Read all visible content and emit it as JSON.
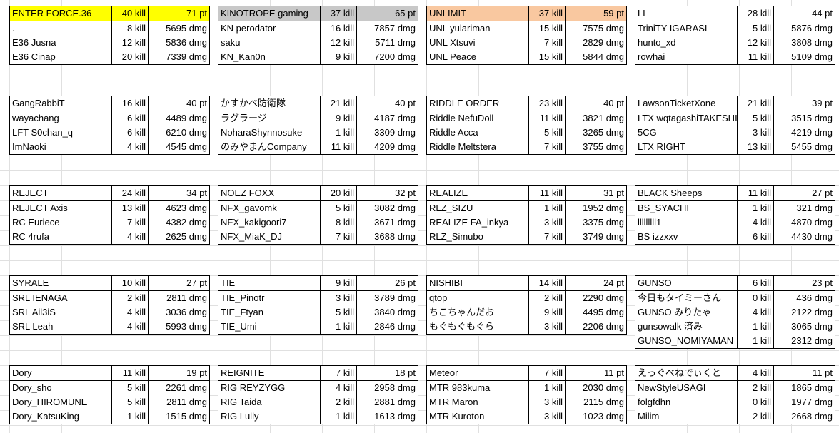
{
  "teams": [
    {
      "name": "ENTER FORCE.36",
      "kills": "40 kill",
      "points": "71 pt",
      "highlight": "#ffff00",
      "players": [
        {
          "name": ".",
          "kills": "8 kill",
          "dmg": "5695 dmg"
        },
        {
          "name": "E36 Jusna",
          "kills": "12 kill",
          "dmg": "5836 dmg"
        },
        {
          "name": "E36 Cinap",
          "kills": "20 kill",
          "dmg": "7339 dmg"
        }
      ]
    },
    {
      "name": "KINOTROPE gaming",
      "kills": "37 kill",
      "points": "65 pt",
      "highlight": "#c8c8c8",
      "players": [
        {
          "name": "KN perodator",
          "kills": "16 kill",
          "dmg": "7857 dmg"
        },
        {
          "name": "saku",
          "kills": "12 kill",
          "dmg": "5711 dmg"
        },
        {
          "name": "KN_Kan0n",
          "kills": "9 kill",
          "dmg": "7200 dmg"
        }
      ]
    },
    {
      "name": "UNLIMIT",
      "kills": "37 kill",
      "points": "59 pt",
      "highlight": "#f9c8a0",
      "players": [
        {
          "name": "UNL yulariman",
          "kills": "15 kill",
          "dmg": "7575 dmg"
        },
        {
          "name": "UNL Xtsuvi",
          "kills": "7 kill",
          "dmg": "2829 dmg"
        },
        {
          "name": "UNL Peace",
          "kills": "15 kill",
          "dmg": "5844 dmg"
        }
      ]
    },
    {
      "name": "LL",
      "kills": "28 kill",
      "points": "44 pt",
      "highlight": "",
      "players": [
        {
          "name": "TriniTY IGARASI",
          "kills": "5 kill",
          "dmg": "5876 dmg"
        },
        {
          "name": "hunto_xd",
          "kills": "12 kill",
          "dmg": "3808 dmg"
        },
        {
          "name": "rowhai",
          "kills": "11 kill",
          "dmg": "5109 dmg"
        }
      ]
    },
    {
      "name": "GangRabbiT",
      "kills": "16 kill",
      "points": "40 pt",
      "highlight": "",
      "players": [
        {
          "name": "wayachang",
          "kills": "6 kill",
          "dmg": "4489 dmg"
        },
        {
          "name": "LFT S0chan_q",
          "kills": "6 kill",
          "dmg": "6210 dmg"
        },
        {
          "name": "ImNaoki",
          "kills": "4 kill",
          "dmg": "4545 dmg"
        }
      ]
    },
    {
      "name": "かすかべ防衛隊",
      "kills": "21 kill",
      "points": "40 pt",
      "highlight": "",
      "players": [
        {
          "name": "ラグラージ",
          "kills": "9 kill",
          "dmg": "4187 dmg"
        },
        {
          "name": "NoharaShynnosuke",
          "kills": "1 kill",
          "dmg": "3309 dmg"
        },
        {
          "name": "のみやまんCompany",
          "kills": "11 kill",
          "dmg": "4209 dmg"
        }
      ]
    },
    {
      "name": "RIDDLE ORDER",
      "kills": "23 kill",
      "points": "40 pt",
      "highlight": "",
      "players": [
        {
          "name": "Riddle NefuDoll",
          "kills": "11 kill",
          "dmg": "3821 dmg"
        },
        {
          "name": "Riddle Acca",
          "kills": "5 kill",
          "dmg": "3265 dmg"
        },
        {
          "name": "Riddle Meltstera",
          "kills": "7 kill",
          "dmg": "3755 dmg"
        }
      ]
    },
    {
      "name": "LawsonTicketXone",
      "kills": "21 kill",
      "points": "39 pt",
      "highlight": "",
      "players": [
        {
          "name": "LTX wqtagashiTAKESHI",
          "kills": "5 kill",
          "dmg": "3515 dmg"
        },
        {
          "name": "5CG",
          "kills": "3 kill",
          "dmg": "4219 dmg"
        },
        {
          "name": "LTX RIGHT",
          "kills": "13 kill",
          "dmg": "5455 dmg"
        }
      ]
    },
    {
      "name": "REJECT",
      "kills": "24 kill",
      "points": "34 pt",
      "highlight": "",
      "players": [
        {
          "name": "REJECT Axis",
          "kills": "13 kill",
          "dmg": "4623 dmg"
        },
        {
          "name": "RC Euriece",
          "kills": "7 kill",
          "dmg": "4382 dmg"
        },
        {
          "name": "RC 4rufa",
          "kills": "4 kill",
          "dmg": "2625 dmg"
        }
      ]
    },
    {
      "name": "NOEZ FOXX",
      "kills": "20 kill",
      "points": "32 pt",
      "highlight": "",
      "players": [
        {
          "name": "NFX_gavomk",
          "kills": "5 kill",
          "dmg": "3082 dmg"
        },
        {
          "name": "NFX_kakigoori7",
          "kills": "8 kill",
          "dmg": "3671 dmg"
        },
        {
          "name": "NFX_MiaK_DJ",
          "kills": "7 kill",
          "dmg": "3688 dmg"
        }
      ]
    },
    {
      "name": "REALIZE",
      "kills": "11 kill",
      "points": "31 pt",
      "highlight": "",
      "players": [
        {
          "name": "RLZ_SIZU",
          "kills": "1 kill",
          "dmg": "1952 dmg"
        },
        {
          "name": "REALIZE FA_inkya",
          "kills": "3 kill",
          "dmg": "3375 dmg"
        },
        {
          "name": "RLZ_Simubo",
          "kills": "7 kill",
          "dmg": "3749 dmg"
        }
      ]
    },
    {
      "name": "BLACK Sheeps",
      "kills": "11 kill",
      "points": "27 pt",
      "highlight": "",
      "players": [
        {
          "name": "BS_SYACHI",
          "kills": "1 kill",
          "dmg": "321 dmg"
        },
        {
          "name": "lllllllll1",
          "kills": "4 kill",
          "dmg": "4870 dmg"
        },
        {
          "name": "BS izzxxv",
          "kills": "6 kill",
          "dmg": "4430 dmg"
        }
      ]
    },
    {
      "name": "SYRALE",
      "kills": "10 kill",
      "points": "27 pt",
      "highlight": "",
      "players": [
        {
          "name": "SRL IENAGA",
          "kills": "2 kill",
          "dmg": "2811 dmg"
        },
        {
          "name": "SRL Ail3iS",
          "kills": "4 kill",
          "dmg": "3036 dmg"
        },
        {
          "name": "SRL Leah",
          "kills": "4 kill",
          "dmg": "5993 dmg"
        }
      ]
    },
    {
      "name": "TIE",
      "kills": "9 kill",
      "points": "26 pt",
      "highlight": "",
      "players": [
        {
          "name": "TIE_Pinotr",
          "kills": "3 kill",
          "dmg": "3789 dmg"
        },
        {
          "name": "TIE_Ftyan",
          "kills": "5 kill",
          "dmg": "3840 dmg"
        },
        {
          "name": "TIE_Umi",
          "kills": "1 kill",
          "dmg": "2846 dmg"
        }
      ]
    },
    {
      "name": "NISHIBI",
      "kills": "14 kill",
      "points": "24 pt",
      "highlight": "",
      "players": [
        {
          "name": "qtop",
          "kills": "2 kill",
          "dmg": "2290 dmg"
        },
        {
          "name": "ちこちゃんだお",
          "kills": "9 kill",
          "dmg": "4495 dmg"
        },
        {
          "name": "もぐもぐもぐら",
          "kills": "3 kill",
          "dmg": "2206 dmg"
        }
      ]
    },
    {
      "name": "GUNSO",
      "kills": "6 kill",
      "points": "23 pt",
      "highlight": "",
      "players": [
        {
          "name": "今日もタイミーさん",
          "kills": "0 kill",
          "dmg": "436 dmg"
        },
        {
          "name": "GUNSO みりたゃ",
          "kills": "4 kill",
          "dmg": "2122 dmg"
        },
        {
          "name": "gunsowalk 済み",
          "kills": "1 kill",
          "dmg": "3065 dmg"
        },
        {
          "name": "GUNSO_NOMIYAMAN",
          "kills": "1 kill",
          "dmg": "2312 dmg"
        }
      ]
    },
    {
      "name": "Dory",
      "kills": "11 kill",
      "points": "19 pt",
      "highlight": "",
      "players": [
        {
          "name": "Dory_sho",
          "kills": "5 kill",
          "dmg": "2261 dmg"
        },
        {
          "name": "Dory_HIROMUNE",
          "kills": "5 kill",
          "dmg": "2811 dmg"
        },
        {
          "name": "Dory_KatsuKing",
          "kills": "1 kill",
          "dmg": "1515 dmg"
        }
      ]
    },
    {
      "name": "REIGNITE",
      "kills": "7 kill",
      "points": "18 pt",
      "highlight": "",
      "players": [
        {
          "name": "RIG REYZYGG",
          "kills": "4 kill",
          "dmg": "2958 dmg"
        },
        {
          "name": "RIG Taida",
          "kills": "2 kill",
          "dmg": "2881 dmg"
        },
        {
          "name": "RIG Lully",
          "kills": "1 kill",
          "dmg": "1613 dmg"
        }
      ]
    },
    {
      "name": "Meteor",
      "kills": "7 kill",
      "points": "11 pt",
      "highlight": "",
      "players": [
        {
          "name": "MTR 983kuma",
          "kills": "1 kill",
          "dmg": "2030 dmg"
        },
        {
          "name": "MTR Maron",
          "kills": "3 kill",
          "dmg": "2115 dmg"
        },
        {
          "name": "MTR Kuroton",
          "kills": "3 kill",
          "dmg": "1023 dmg"
        }
      ]
    },
    {
      "name": "えっぐべねでぃくと",
      "kills": "4 kill",
      "points": "11 pt",
      "highlight": "",
      "players": [
        {
          "name": "NewStyleUSAGI",
          "kills": "2 kill",
          "dmg": "1865 dmg"
        },
        {
          "name": "folgfdhn",
          "kills": "0 kill",
          "dmg": "1977 dmg"
        },
        {
          "name": "Milim",
          "kills": "2 kill",
          "dmg": "2668 dmg"
        }
      ]
    }
  ]
}
